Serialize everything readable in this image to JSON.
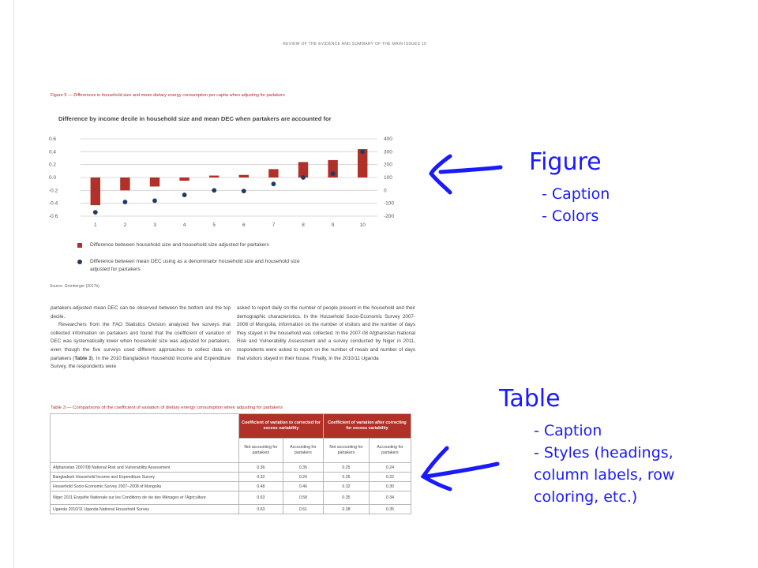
{
  "page": {
    "running_head": "REVIEW OF THE EVIDENCE AND SUMMARY OF THE MAIN ISSUES   19"
  },
  "figure": {
    "caption": "Figure 5 — Differences in household size and mean dietary energy consumption per capita when adjusting for partakers",
    "source": "Source: Grünberger (2017b).",
    "chart_data": {
      "type": "bar",
      "title": "Difference by income decile in household size and mean DEC when partakers are accounted for",
      "categories": [
        "1",
        "2",
        "3",
        "4",
        "5",
        "6",
        "7",
        "8",
        "9",
        "10"
      ],
      "ylim": [
        -0.6,
        0.6
      ],
      "y2lim": [
        -200,
        400
      ],
      "y_ticks": [
        "0.6",
        "0.4",
        "0.2",
        "0.0",
        "-0.2",
        "-0.4",
        "-0.6"
      ],
      "y2_ticks": [
        "400",
        "300",
        "200",
        "100",
        "0",
        "-100",
        "-200"
      ],
      "series": [
        {
          "name": "Difference between household size and household size adjusted for partakers",
          "type": "bar",
          "axis": "left",
          "color": "#b03128",
          "values": [
            -0.43,
            -0.2,
            -0.14,
            -0.05,
            0.03,
            0.04,
            0.13,
            0.24,
            0.27,
            0.44
          ]
        },
        {
          "name": "Difference between mean DEC using as a denominator household size and household size adjusted for partakers",
          "type": "scatter",
          "axis": "right",
          "color": "#1f3b64",
          "values": [
            -170,
            -90,
            -80,
            -35,
            0,
            -5,
            50,
            100,
            130,
            300
          ]
        }
      ],
      "grid": true,
      "legend_position": "bottom-left"
    }
  },
  "body": {
    "col1": [
      "partakers-adjusted mean DEC can be observed between the bottom and the top decile.",
      "Researchers from the FAO Statistics Division analyzed five surveys that collected information on partakers and found that the coefficient of variation of DEC was systematically lower when household size was adjusted for partakers, even though the five surveys used different approaches to collect data on partakers (",
      "Table 3",
      "). In the 2010 Bangladesh Household Income and Expenditure Survey, the respondents were"
    ],
    "col2": "asked to report daily on the number of people present in the household and their demographic characteristics. In the Household Socio-Economic Survey 2007-2008 of Mongolia, information on the number of visitors and the number of days they stayed in the household was collected. In the 2007-08 Afghanistan National Risk and Vulnerability Assessment and a survey conducted by Niger in 2011, respondents were asked to report on the number of meals and number of days that visitors stayed in their house. Finally, in the 2010/11 Uganda"
  },
  "table": {
    "caption": "Table 3 — Comparisons of the coefficient of variation of dietary energy consumption when adjusting for partakers",
    "group_headers": [
      "Coefficient of variation to corrected for excess variability",
      "Coefficient of variation after correcting for excess variability"
    ],
    "sub_headers": [
      "Not accounting for partakers",
      "Accounting for partakers",
      "Not accounting for partakers",
      "Accounting for partakers"
    ],
    "rows": [
      {
        "label": "Afghanistan 2007/08 National Risk and Vulnerability Assessment",
        "v": [
          "0.36",
          "0.35",
          "0.25",
          "0.24"
        ]
      },
      {
        "label": "Bangladesh Household Income and Expenditure Survey",
        "v": [
          "0.32",
          "0.24",
          "0.26",
          "0.22"
        ]
      },
      {
        "label": "Household Socio-Economic Survey 2007–2008 of Mongolia",
        "v": [
          "0.48",
          "0.46",
          "0.32",
          "0.30"
        ]
      },
      {
        "label": "Niger 2011 Enquête Nationale sur les Conditions de vie des Ménages et l'Agriculture",
        "v": [
          "0.63",
          "0.58",
          "0.35",
          "0.34"
        ]
      },
      {
        "label": "Uganda 2010/11 Uganda National Household Survey",
        "v": [
          "0.63",
          "0.61",
          "0.38",
          "0.35"
        ]
      }
    ]
  },
  "annotations": {
    "figure_title": "Figure",
    "figure_items": [
      "-  Caption",
      "-  Colors"
    ],
    "table_title": "Table",
    "table_items": [
      "-  Caption",
      "-  Styles (headings,",
      "   column labels, row",
      "   coloring, etc.)"
    ],
    "ink_color": "#1a1aff"
  }
}
